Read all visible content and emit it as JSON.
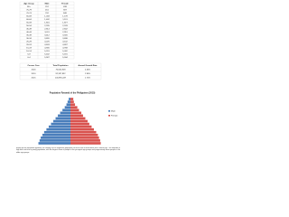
{
  "table": {
    "headers": [
      "Age Group",
      "Male",
      "Female"
    ],
    "rows": [
      [
        "80+",
        "312",
        "498"
      ],
      [
        "75-79",
        "451",
        "587"
      ],
      [
        "70-74",
        "702",
        "846"
      ],
      [
        "65-69",
        "1,043",
        "1,178"
      ],
      [
        "60-64",
        "1,402",
        "1,511"
      ],
      [
        "55-59",
        "1,801",
        "1,877"
      ],
      [
        "50-54",
        "2,205",
        "2,243"
      ],
      [
        "45-49",
        "2,614",
        "2,602"
      ],
      [
        "40-44",
        "3,011",
        "2,951"
      ],
      [
        "35-39",
        "3,412",
        "3,305"
      ],
      [
        "30-34",
        "3,820",
        "3,698"
      ],
      [
        "25-29",
        "4,225",
        "4,102"
      ],
      [
        "20-24",
        "4,603",
        "4,487"
      ],
      [
        "15-19",
        "4,905",
        "4,768"
      ],
      [
        "10-14",
        "5,201",
        "5,002"
      ],
      [
        "5-9",
        "5,402",
        "5,181"
      ],
      [
        "0-4",
        "5,587",
        "5,344"
      ]
    ]
  },
  "summary": {
    "headers": [
      "Census Year",
      "Total Population",
      "Annual Growth Rate"
    ],
    "rows": [
      [
        "2000",
        "76,506,928",
        "2.34%"
      ],
      [
        "2010",
        "92,337,852",
        "1.90%"
      ],
      [
        "2015",
        "100,981,437",
        "1.72%"
      ]
    ]
  },
  "chart_data": {
    "type": "pyramid",
    "title": "Population Pyramid of the Philippines (2015)",
    "categories": [
      "0-4",
      "5-9",
      "10-14",
      "15-19",
      "20-24",
      "25-29",
      "30-34",
      "35-39",
      "40-44",
      "45-49",
      "50-54",
      "55-59",
      "60-64",
      "65-69",
      "70-74",
      "75-79",
      "80+"
    ],
    "series": [
      {
        "name": "Male",
        "color": "#4a7ebb",
        "values": [
          5.6,
          5.4,
          5.2,
          4.9,
          4.6,
          4.2,
          3.8,
          3.4,
          3.0,
          2.6,
          2.2,
          1.8,
          1.4,
          1.0,
          0.7,
          0.5,
          0.3
        ]
      },
      {
        "name": "Female",
        "color": "#d9534f",
        "values": [
          5.3,
          5.2,
          5.0,
          4.8,
          4.5,
          4.1,
          3.7,
          3.3,
          3.0,
          2.6,
          2.2,
          1.9,
          1.5,
          1.2,
          0.8,
          0.6,
          0.5
        ]
      }
    ],
    "xlim": [
      0,
      6
    ]
  },
  "paragraph": "Based on the population pyramid, the country has an expansive population structure with a broad base and a narrow top. This indicates a high birth rate and a young population, with the largest share of people in the youngest age groups and progressively fewer people in the older age groups."
}
